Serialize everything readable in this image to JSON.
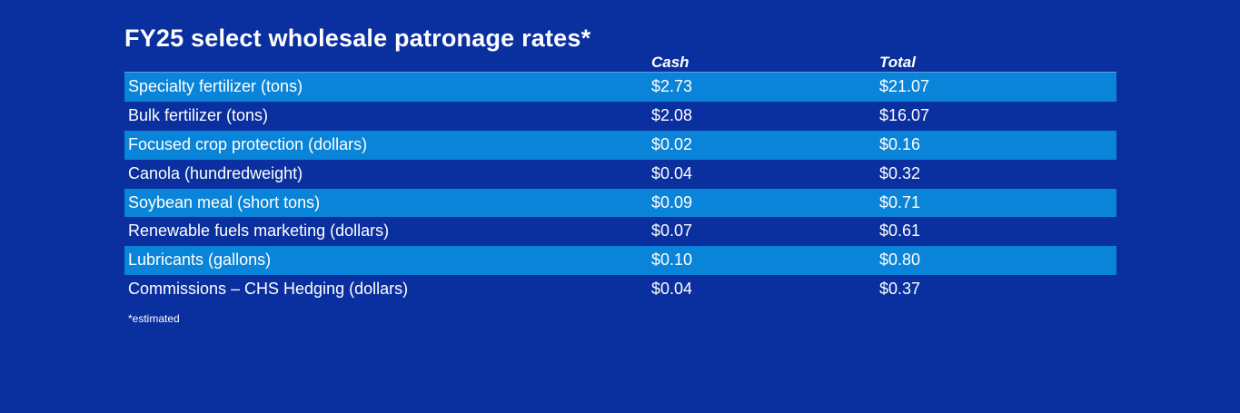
{
  "title": "FY25 select wholesale patronage rates*",
  "columns": {
    "cash": "Cash",
    "total": "Total"
  },
  "rows": [
    {
      "label": "Specialty fertilizer (tons)",
      "cash": "$2.73",
      "total": "$21.07"
    },
    {
      "label": "Bulk fertilizer (tons)",
      "cash": "$2.08",
      "total": "$16.07"
    },
    {
      "label": "Focused crop protection (dollars)",
      "cash": "$0.02",
      "total": "$0.16"
    },
    {
      "label": "Canola (hundredweight)",
      "cash": "$0.04",
      "total": "$0.32"
    },
    {
      "label": "Soybean meal (short tons)",
      "cash": "$0.09",
      "total": "$0.71"
    },
    {
      "label": "Renewable fuels marketing (dollars)",
      "cash": "$0.07",
      "total": "$0.61"
    },
    {
      "label": "Lubricants (gallons)",
      "cash": "$0.10",
      "total": "$0.80"
    },
    {
      "label": "Commissions – CHS Hedging (dollars)",
      "cash": "$0.04",
      "total": "$0.37"
    }
  ],
  "footnote": "*estimated",
  "colors": {
    "background": "#0a2f9e",
    "row_highlight": "#0a84d8",
    "header_rule": "#5aa3e6",
    "text": "#ffffff"
  }
}
